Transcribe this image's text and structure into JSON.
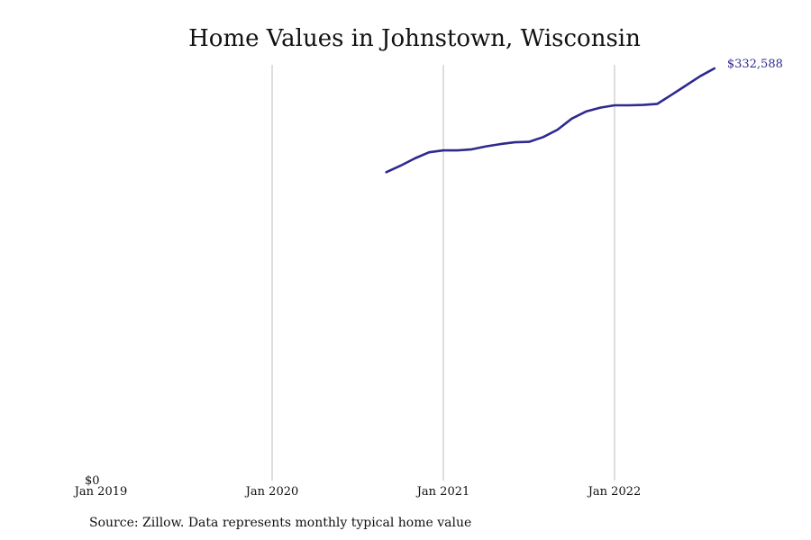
{
  "title": "Home Values in Johnstown, Wisconsin",
  "source": "Source: Zillow. Data represents monthly typical home value",
  "colors": {
    "line": "#2e2a8e",
    "grid": "#bdbdbd",
    "text": "#111111"
  },
  "chart_data": {
    "type": "line",
    "title": "Home Values in Johnstown, Wisconsin",
    "xlabel": "",
    "ylabel": "",
    "x_tick_labels": [
      "Jan 2019",
      "Jan 2020",
      "Jan 2021",
      "Jan 2022"
    ],
    "y_tick_labels": [
      "$0"
    ],
    "xlim": [
      "2019-01",
      "2022-09"
    ],
    "ylim": [
      0,
      332588
    ],
    "grid": "vertical",
    "last_value_label": "$332,588",
    "series": [
      {
        "points": [
          {
            "x": "2020-09",
            "y": 248860
          },
          {
            "x": "2020-10",
            "y": 254100
          },
          {
            "x": "2020-11",
            "y": 259950
          },
          {
            "x": "2020-12",
            "y": 264890
          },
          {
            "x": "2021-01",
            "y": 266400
          },
          {
            "x": "2021-02",
            "y": 266400
          },
          {
            "x": "2021-03",
            "y": 267300
          },
          {
            "x": "2021-04",
            "y": 269700
          },
          {
            "x": "2021-05",
            "y": 271500
          },
          {
            "x": "2021-06",
            "y": 273000
          },
          {
            "x": "2021-07",
            "y": 273300
          },
          {
            "x": "2021-08",
            "y": 277200
          },
          {
            "x": "2021-09",
            "y": 283100
          },
          {
            "x": "2021-10",
            "y": 292100
          },
          {
            "x": "2021-11",
            "y": 297800
          },
          {
            "x": "2021-12",
            "y": 300900
          },
          {
            "x": "2022-01",
            "y": 302800
          },
          {
            "x": "2022-02",
            "y": 302800
          },
          {
            "x": "2022-03",
            "y": 303100
          },
          {
            "x": "2022-04",
            "y": 304000
          },
          {
            "x": "2022-05",
            "y": 311300
          },
          {
            "x": "2022-06",
            "y": 318800
          },
          {
            "x": "2022-07",
            "y": 326300
          },
          {
            "x": "2022-08",
            "y": 332588
          }
        ]
      }
    ]
  }
}
